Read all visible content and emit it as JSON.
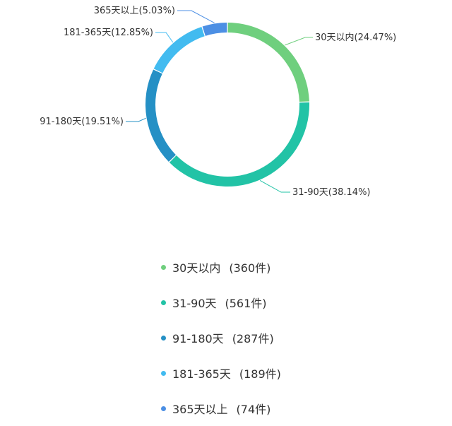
{
  "chart_data": {
    "type": "pie",
    "donut": true,
    "slices": [
      {
        "name": "30天以内",
        "percent": 24.47,
        "count": 360,
        "count_label": "(360件)",
        "slice_label": "30天以内(24.47%)",
        "color": "#6fcf7e"
      },
      {
        "name": "31-90天",
        "percent": 38.14,
        "count": 561,
        "count_label": "(561件)",
        "slice_label": "31-90天(38.14%)",
        "color": "#22c3a6"
      },
      {
        "name": "91-180天",
        "percent": 19.51,
        "count": 287,
        "count_label": "(287件)",
        "slice_label": "91-180天(19.51%)",
        "color": "#2590c5"
      },
      {
        "name": "181-365天",
        "percent": 12.85,
        "count": 189,
        "count_label": "(189件)",
        "slice_label": "181-365天(12.85%)",
        "color": "#42bbf0"
      },
      {
        "name": "365天以上",
        "percent": 5.03,
        "count": 74,
        "count_label": "(74件)",
        "slice_label": "365天以上(5.03%)",
        "color": "#4c8fe4"
      }
    ],
    "legend_placement": "bottom"
  }
}
